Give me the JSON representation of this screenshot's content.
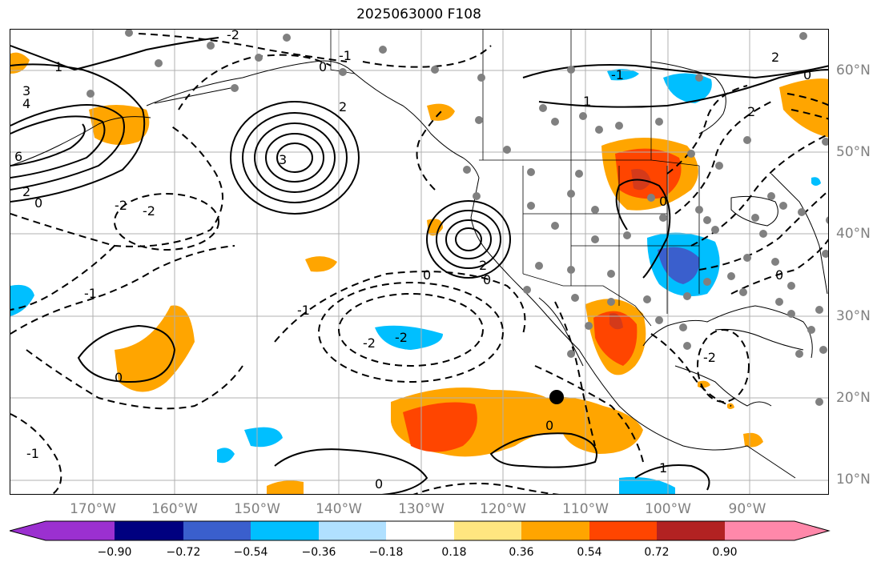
{
  "title": "2025063000 F108",
  "lon_labels": [
    "170°W",
    "160°W",
    "150°W",
    "140°W",
    "130°W",
    "120°W",
    "110°W",
    "100°W",
    "90°W"
  ],
  "lat_labels": [
    "60°N",
    "50°N",
    "40°N",
    "30°N",
    "20°N",
    "10°N"
  ],
  "contour_labels": [
    "-2",
    "-2",
    "-2",
    "-2",
    "-2",
    "-2",
    "-1",
    "-1",
    "-1",
    "-1",
    "-1",
    "0",
    "0",
    "0",
    "0",
    "0",
    "0",
    "1",
    "1",
    "1",
    "2",
    "2",
    "2",
    "2",
    "3",
    "3",
    "4",
    "6",
    "2",
    "0",
    "0",
    "0",
    "0"
  ],
  "colorbar": {
    "ticks": [
      "−0.90",
      "−0.72",
      "−0.54",
      "−0.36",
      "−0.18",
      "0.18",
      "0.36",
      "0.54",
      "0.72",
      "0.90"
    ],
    "colors": [
      "#9b30d0",
      "#000080",
      "#3a5fcd",
      "#00bfff",
      "#b0e0ff",
      "#ffffff",
      "#ffe680",
      "#ffa500",
      "#ff4500",
      "#b22222",
      "#ff88aa"
    ]
  },
  "colors": {
    "orange": "#ffa500",
    "red_orange": "#ff4500",
    "dark_red": "#d43a1a",
    "sky_blue": "#00bfff",
    "royal_blue": "#3a5fcd",
    "station_gray": "#808080",
    "grid_gray": "#b0b0b0"
  },
  "marker": "black-dot"
}
